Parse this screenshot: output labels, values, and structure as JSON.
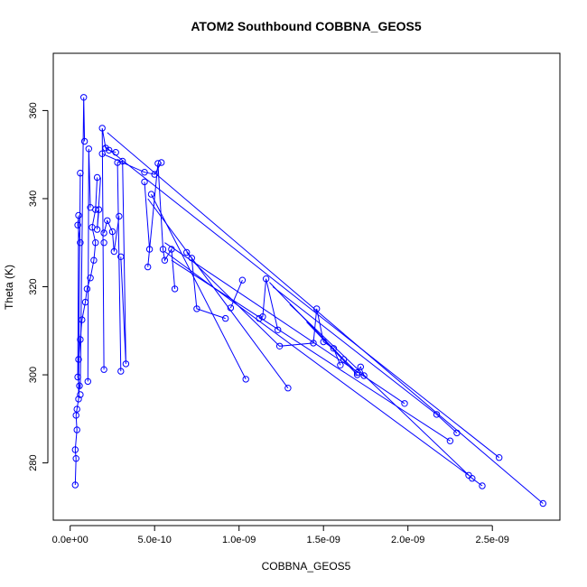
{
  "chart_data": {
    "type": "line",
    "title": "ATOM2 Southbound COBBNA_GEOS5",
    "xlabel": "COBBNA_GEOS5",
    "ylabel": "Theta (K)",
    "xlim": [
      -1e-10,
      2.9e-09
    ],
    "ylim": [
      267,
      373
    ],
    "x_ticks": [
      0,
      5e-10,
      1e-09,
      1.5e-09,
      2e-09,
      2.5e-09
    ],
    "x_tick_labels": [
      "0.0e+00",
      "5.0e-10",
      "1.0e-09",
      "1.5e-09",
      "2.0e-09",
      "2.5e-09"
    ],
    "y_ticks": [
      280,
      300,
      320,
      340,
      360
    ],
    "y_tick_labels": [
      "280",
      "300",
      "320",
      "340",
      "360"
    ],
    "grid": false,
    "marker": "open-circle",
    "series": [
      {
        "color": "#0000ff",
        "points": [
          [
            3e-11,
            275.0
          ],
          [
            3.5e-11,
            281.0
          ],
          [
            3e-11,
            283.0
          ],
          [
            4e-11,
            287.5
          ],
          [
            3.5e-11,
            290.8
          ],
          [
            4e-11,
            292.2
          ],
          [
            5e-11,
            294.5
          ],
          [
            5.5e-11,
            297.5
          ],
          [
            4.5e-11,
            299.5
          ],
          [
            5e-11,
            303.5
          ],
          [
            6e-11,
            308.0
          ],
          [
            7e-11,
            312.5
          ],
          [
            9e-11,
            316.5
          ],
          [
            1e-10,
            319.5
          ],
          [
            1.2e-10,
            322.0
          ],
          [
            1.4e-10,
            326.0
          ],
          [
            1.5e-10,
            330.0
          ],
          [
            1.3e-10,
            333.5
          ],
          [
            1.5e-10,
            337.5
          ],
          [
            1.6e-10,
            344.8
          ],
          [
            1.7e-10,
            337.5
          ],
          [
            1.6e-10,
            333.0
          ],
          [
            2e-10,
            330.0
          ],
          [
            2.2e-10,
            335.0
          ],
          [
            2.5e-10,
            332.5
          ],
          [
            2.6e-10,
            328.0
          ],
          [
            2.9e-10,
            336.0
          ],
          [
            3e-10,
            326.8
          ],
          [
            2.8e-10,
            348.2
          ],
          [
            3.1e-10,
            348.5
          ],
          [
            3.3e-10,
            302.5
          ],
          [
            4.4e-10,
            343.8
          ],
          [
            4.7e-10,
            328.5
          ],
          [
            4.6e-10,
            324.5
          ],
          [
            5.2e-10,
            348.0
          ],
          [
            5.5e-10,
            328.5
          ],
          [
            5.6e-10,
            326.0
          ],
          [
            6e-10,
            328.5
          ],
          [
            6.2e-10,
            319.5
          ],
          [
            6.9e-10,
            327.8
          ],
          [
            7.2e-10,
            326.5
          ],
          [
            7.5e-10,
            315.0
          ],
          [
            9.2e-10,
            312.8
          ],
          [
            9.5e-10,
            315.2
          ],
          [
            1.02e-09,
            321.5
          ],
          [
            1.12e-09,
            312.8
          ],
          [
            1.14e-09,
            313.2
          ],
          [
            1.16e-09,
            321.8
          ],
          [
            1.23e-09,
            310.2
          ],
          [
            1.24e-09,
            306.5
          ],
          [
            1.44e-09,
            307.2
          ],
          [
            1.46e-09,
            315.0
          ],
          [
            1.5e-09,
            307.5
          ],
          [
            1.56e-09,
            306.0
          ],
          [
            1.6e-09,
            302.2
          ],
          [
            1.7e-09,
            300.5
          ],
          [
            1.72e-09,
            301.8
          ],
          [
            1.74e-09,
            299.8
          ],
          [
            2.17e-09,
            291.0
          ],
          [
            2.29e-09,
            286.8
          ],
          [
            2.38e-09,
            276.5
          ],
          [
            2.44e-09,
            274.8
          ],
          [
            2.54e-09,
            281.2
          ],
          [
            2.8e-09,
            270.8
          ],
          [
            8e-11,
            363.0
          ],
          [
            8.5e-11,
            353.0
          ],
          [
            1.9e-10,
            356.0
          ],
          [
            2.1e-10,
            351.5
          ],
          [
            2.3e-10,
            351.0
          ],
          [
            2.7e-10,
            350.5
          ],
          [
            1.9e-10,
            350.2
          ],
          [
            4.4e-10,
            346.0
          ],
          [
            5e-10,
            345.5
          ],
          [
            5.4e-10,
            348.2
          ],
          [
            6e-11,
            345.8
          ],
          [
            5e-11,
            336.2
          ],
          [
            4.5e-11,
            334.0
          ],
          [
            6e-11,
            330.0
          ],
          [
            1.1e-10,
            351.3
          ],
          [
            1.2e-10,
            338.0
          ],
          [
            1.05e-10,
            298.5
          ],
          [
            6e-11,
            295.5
          ],
          [
            2e-10,
            301.2
          ],
          [
            2e-10,
            332.2
          ],
          [
            3e-10,
            300.8
          ],
          [
            4.8e-10,
            341.0
          ],
          [
            1.04e-09,
            299.0
          ],
          [
            1.29e-09,
            297.0
          ],
          [
            1.98e-09,
            293.5
          ],
          [
            2.36e-09,
            277.2
          ],
          [
            2.25e-09,
            285.0
          ],
          [
            1.62e-09,
            303.5
          ],
          [
            1.7e-09,
            300.0
          ]
        ],
        "segments": [
          [
            [
              3e-11,
              275.0
            ],
            [
              3.5e-11,
              281.0
            ],
            [
              3e-11,
              283.0
            ],
            [
              4e-11,
              287.5
            ],
            [
              3.5e-11,
              290.8
            ],
            [
              4e-11,
              292.2
            ],
            [
              5e-11,
              294.5
            ],
            [
              5.5e-11,
              297.5
            ],
            [
              4.5e-11,
              299.5
            ],
            [
              5e-11,
              303.5
            ],
            [
              6e-11,
              308.0
            ],
            [
              7e-11,
              312.5
            ],
            [
              9e-11,
              316.5
            ],
            [
              1e-10,
              319.5
            ],
            [
              1.2e-10,
              322.0
            ],
            [
              1.4e-10,
              326.0
            ],
            [
              1.5e-10,
              330.0
            ],
            [
              1.3e-10,
              333.5
            ],
            [
              1.5e-10,
              337.5
            ],
            [
              1.6e-10,
              344.8
            ]
          ],
          [
            [
              5e-11,
              296.0
            ],
            [
              6e-11,
              345.8
            ]
          ],
          [
            [
              6e-11,
              297.0
            ],
            [
              8e-11,
              363.0
            ],
            [
              8.5e-11,
              353.0
            ]
          ],
          [
            [
              4.5e-11,
              300.0
            ],
            [
              5e-11,
              336.2
            ],
            [
              4.5e-11,
              334.0
            ],
            [
              6e-11,
              330.0
            ]
          ],
          [
            [
              1.05e-10,
              298.5
            ],
            [
              1.1e-10,
              351.3
            ],
            [
              1.2e-10,
              338.0
            ]
          ],
          [
            [
              1.7e-10,
              337.5
            ],
            [
              1.6e-10,
              333.0
            ],
            [
              1.8e-10,
              344.8
            ]
          ],
          [
            [
              2e-10,
              301.2
            ],
            [
              1.9e-10,
              356.0
            ],
            [
              2.1e-10,
              351.5
            ],
            [
              2.3e-10,
              351.0
            ],
            [
              2.7e-10,
              350.5
            ]
          ],
          [
            [
              2e-10,
              332.2
            ],
            [
              2.2e-10,
              335.0
            ],
            [
              2.5e-10,
              332.5
            ],
            [
              2.6e-10,
              328.0
            ],
            [
              2.9e-10,
              336.0
            ]
          ],
          [
            [
              3e-10,
              300.8
            ],
            [
              2.8e-10,
              348.2
            ],
            [
              3.1e-10,
              348.5
            ],
            [
              3.3e-10,
              302.5
            ],
            [
              3e-10,
              326.8
            ]
          ],
          [
            [
              1.9e-10,
              350.2
            ],
            [
              4.4e-10,
              346.0
            ],
            [
              5e-10,
              345.5
            ],
            [
              5.4e-10,
              348.2
            ]
          ],
          [
            [
              4.4e-10,
              343.8
            ],
            [
              4.7e-10,
              328.5
            ],
            [
              4.6e-10,
              324.5
            ],
            [
              5.2e-10,
              348.0
            ],
            [
              5.5e-10,
              328.5
            ],
            [
              5.6e-10,
              326.0
            ],
            [
              6e-10,
              328.5
            ],
            [
              6.2e-10,
              319.5
            ]
          ],
          [
            [
              2.2e-10,
              355.0
            ],
            [
              2.8e-09,
              270.8
            ]
          ],
          [
            [
              2e-10,
              352.0
            ],
            [
              2.54e-09,
              281.2
            ]
          ],
          [
            [
              4.8e-10,
              341.0
            ],
            [
              1.04e-09,
              299.0
            ]
          ],
          [
            [
              4.6e-10,
              340.0
            ],
            [
              1.29e-09,
              297.0
            ]
          ],
          [
            [
              6.9e-10,
              327.8
            ],
            [
              7.2e-10,
              326.5
            ],
            [
              7.5e-10,
              315.0
            ],
            [
              9.2e-10,
              312.8
            ]
          ],
          [
            [
              5.6e-10,
              330.0
            ],
            [
              1.98e-09,
              293.5
            ]
          ],
          [
            [
              5.6e-10,
              328.0
            ],
            [
              2.36e-09,
              277.2
            ]
          ],
          [
            [
              6e-10,
              326.0
            ],
            [
              2.25e-09,
              285.0
            ]
          ],
          [
            [
              9.5e-10,
              315.2
            ],
            [
              1.02e-09,
              321.5
            ]
          ],
          [
            [
              1.12e-09,
              312.8
            ],
            [
              1.14e-09,
              313.2
            ],
            [
              1.16e-09,
              321.8
            ],
            [
              1.23e-09,
              310.2
            ]
          ],
          [
            [
              7.2e-10,
              326.0
            ],
            [
              1.24e-09,
              306.5
            ],
            [
              1.44e-09,
              307.2
            ],
            [
              1.46e-09,
              315.0
            ],
            [
              1.5e-09,
              307.5
            ],
            [
              1.56e-09,
              306.0
            ],
            [
              1.6e-09,
              302.2
            ]
          ],
          [
            [
              1.18e-09,
              321.0
            ],
            [
              1.62e-09,
              303.5
            ],
            [
              1.7e-09,
              300.5
            ],
            [
              1.72e-09,
              301.8
            ],
            [
              1.74e-09,
              299.8
            ]
          ],
          [
            [
              1.2e-09,
              320.0
            ],
            [
              2.17e-09,
              291.0
            ],
            [
              2.29e-09,
              286.8
            ]
          ],
          [
            [
              1.3e-09,
              316.0
            ],
            [
              2.38e-09,
              276.5
            ],
            [
              2.44e-09,
              274.8
            ]
          ],
          [
            [
              1.4e-09,
              312.0
            ],
            [
              1.7e-09,
              300.0
            ]
          ]
        ]
      }
    ]
  }
}
